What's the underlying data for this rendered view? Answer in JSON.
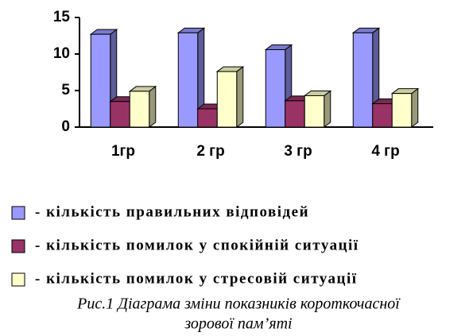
{
  "chart_data": {
    "type": "bar3d",
    "categories": [
      "1гр",
      "2 гр",
      "3 гр",
      "4 гр"
    ],
    "series": [
      {
        "name": "- кількість правильних відповідей",
        "color": "#9999ff",
        "values": [
          12.7,
          12.9,
          10.6,
          12.9
        ]
      },
      {
        "name": "- кількість помилок у спокійній ситуації",
        "color": "#993366",
        "values": [
          3.5,
          2.5,
          3.6,
          3.2
        ]
      },
      {
        "name": "- кількість помилок у стресовій ситуації",
        "color": "#ffffcc",
        "values": [
          4.9,
          7.6,
          4.3,
          4.6
        ]
      }
    ],
    "ylim": [
      0,
      15
    ],
    "yticks": [
      0,
      5,
      10,
      15
    ],
    "grid": false,
    "legend": "bottom",
    "caption": [
      "Рис.1 Діаграма зміни показників короткочасної",
      "зорової пам’яті"
    ]
  }
}
